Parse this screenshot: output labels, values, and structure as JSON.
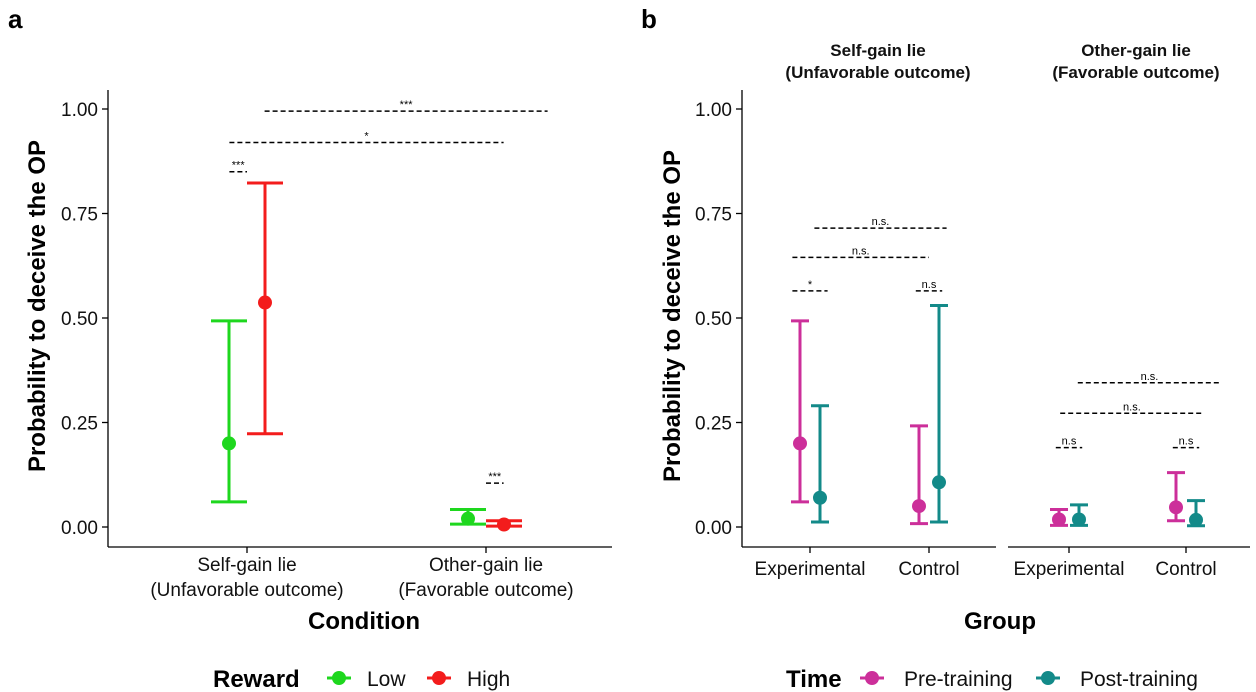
{
  "colors": {
    "low": "#1ed71e",
    "high": "#f31c1c",
    "pre": "#cc2f9a",
    "post": "#138a89",
    "axis": "#000000"
  },
  "chart_data": [
    {
      "panel": "a",
      "type": "scatter",
      "xlabel": "Condition",
      "ylabel": "Probability to deceive the OP",
      "ylim": [
        0,
        1
      ],
      "yticks": [
        "0.00",
        "0.25",
        "0.50",
        "0.75",
        "1.00"
      ],
      "categories": [
        [
          "Self-gain lie",
          "(Unfavorable outcome)"
        ],
        [
          "Other-gain lie",
          "(Favorable outcome)"
        ]
      ],
      "legend": {
        "title": "Reward",
        "position": "bottom"
      },
      "series": [
        {
          "name": "Low",
          "color_key": "low",
          "values": [
            0.2,
            0.02
          ],
          "lower": [
            0.06,
            0.007
          ],
          "upper": [
            0.493,
            0.042
          ]
        },
        {
          "name": "High",
          "color_key": "high",
          "values": [
            0.537,
            0.006
          ],
          "lower": [
            0.223,
            0.002
          ],
          "upper": [
            0.823,
            0.015
          ]
        }
      ],
      "annotations": [
        {
          "label": "***",
          "x_from": [
            0,
            -0.08
          ],
          "x_to": [
            0,
            0.0
          ],
          "y": 0.85
        },
        {
          "label": "*",
          "x_from": [
            0,
            -0.08
          ],
          "x_to": [
            1,
            0.08
          ],
          "y": 0.92
        },
        {
          "label": "***",
          "x_from": [
            0,
            0.08
          ],
          "x_to": [
            1,
            0.28
          ],
          "y": 0.995
        },
        {
          "label": "***",
          "x_from": [
            1,
            0.0
          ],
          "x_to": [
            1,
            0.08
          ],
          "y": 0.105
        }
      ],
      "grid": false
    },
    {
      "panel": "b",
      "type": "scatter",
      "xlabel": "Group",
      "ylabel": "Probability to deceive the OP",
      "ylim": [
        0,
        1
      ],
      "yticks": [
        "0.00",
        "0.25",
        "0.50",
        "0.75",
        "1.00"
      ],
      "facets": [
        {
          "title": [
            "Self-gain lie",
            "(Unfavorable outcome)"
          ],
          "categories": [
            "Experimental",
            "Control"
          ]
        },
        {
          "title": [
            "Other-gain lie",
            "(Favorable outcome)"
          ],
          "categories": [
            "Experimental",
            "Control"
          ]
        }
      ],
      "legend": {
        "title": "Time",
        "position": "bottom"
      },
      "series": [
        {
          "name": "Pre-training",
          "color_key": "pre",
          "values": [
            0.2,
            0.05,
            0.018,
            0.047
          ],
          "lower": [
            0.06,
            0.008,
            0.004,
            0.015
          ],
          "upper": [
            0.493,
            0.242,
            0.042,
            0.13
          ]
        },
        {
          "name": "Post-training",
          "color_key": "post",
          "values": [
            0.07,
            0.107,
            0.018,
            0.017
          ],
          "lower": [
            0.012,
            0.012,
            0.004,
            0.003
          ],
          "upper": [
            0.29,
            0.53,
            0.053,
            0.063
          ]
        }
      ],
      "annotations": [
        {
          "label": "*",
          "facet": 0,
          "x_from": [
            0,
            -0.08
          ],
          "x_to": [
            0,
            0.08
          ],
          "y": 0.565
        },
        {
          "label": "n.s.",
          "facet": 0,
          "x_from": [
            0,
            -0.08
          ],
          "x_to": [
            1,
            0.0
          ],
          "y": 0.645
        },
        {
          "label": "n.s.",
          "facet": 0,
          "x_from": [
            0,
            0.02
          ],
          "x_to": [
            1,
            0.08
          ],
          "y": 0.715
        },
        {
          "label": "n.s",
          "facet": 0,
          "x_from": [
            1,
            -0.06
          ],
          "x_to": [
            1,
            0.06
          ],
          "y": 0.565
        },
        {
          "label": "n.s",
          "facet": 1,
          "x_from": [
            0,
            -0.06
          ],
          "x_to": [
            0,
            0.06
          ],
          "y": 0.19
        },
        {
          "label": "n.s",
          "facet": 1,
          "x_from": [
            1,
            -0.06
          ],
          "x_to": [
            1,
            0.06
          ],
          "y": 0.19
        },
        {
          "label": "n.s.",
          "facet": 1,
          "x_from": [
            0,
            -0.04
          ],
          "x_to": [
            1,
            0.08
          ],
          "y": 0.272
        },
        {
          "label": "n.s.",
          "facet": 1,
          "x_from": [
            0,
            0.04
          ],
          "x_to": [
            1,
            0.16
          ],
          "y": 0.345
        }
      ],
      "grid": false
    }
  ]
}
